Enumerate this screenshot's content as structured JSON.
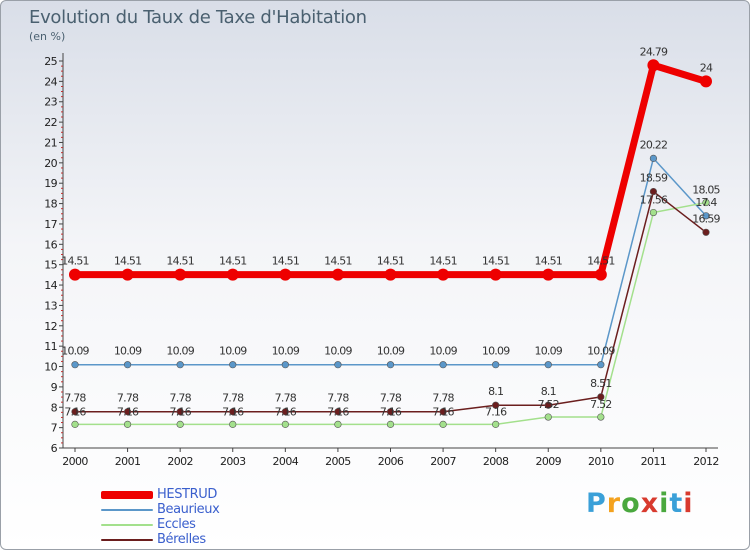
{
  "colors": {
    "hestrud": "#ee0000",
    "beaurieux": "#5b97c9",
    "eccles": "#a3e08c",
    "berelles": "#6b1e1e"
  },
  "logo": {
    "parts": [
      "P",
      "r",
      "o",
      "x",
      "i",
      "t",
      "i"
    ],
    "colors": [
      "#3aa0d8",
      "#f4a21e",
      "#4aa83e",
      "#d83a2e",
      "#4aa83e",
      "#3aa0d8",
      "#d83a2e"
    ]
  },
  "chart_data": {
    "type": "line",
    "title": "Evolution du Taux de Taxe d'Habitation",
    "subtitle": "(en %)",
    "xlabel": "",
    "ylabel": "(en %)",
    "ylim": [
      6,
      25
    ],
    "yticks": [
      "6",
      "7",
      "8",
      "9",
      "10",
      "11",
      "12",
      "13",
      "14",
      "15",
      "16",
      "17",
      "18",
      "19",
      "20",
      "21",
      "22",
      "23",
      "24",
      "25"
    ],
    "categories": [
      "2000",
      "2001",
      "2002",
      "2003",
      "2004",
      "2005",
      "2006",
      "2007",
      "2008",
      "2009",
      "2010",
      "2011",
      "2012"
    ],
    "series": [
      {
        "name": "HESTRUD",
        "color": "#ee0000",
        "values": [
          14.51,
          14.51,
          14.51,
          14.51,
          14.51,
          14.51,
          14.51,
          14.51,
          14.51,
          14.51,
          14.51,
          24.79,
          24
        ],
        "labels": [
          "14.51",
          "14.51",
          "14.51",
          "14.51",
          "14.51",
          "14.51",
          "14.51",
          "14.51",
          "14.51",
          "14.51",
          "14.51",
          "24.79",
          "24"
        ]
      },
      {
        "name": "Beaurieux",
        "color": "#5b97c9",
        "values": [
          10.09,
          10.09,
          10.09,
          10.09,
          10.09,
          10.09,
          10.09,
          10.09,
          10.09,
          10.09,
          10.09,
          20.22,
          17.4
        ],
        "labels": [
          "10.09",
          "10.09",
          "10.09",
          "10.09",
          "10.09",
          "10.09",
          "10.09",
          "10.09",
          "10.09",
          "10.09",
          "10.09",
          "20.22",
          "17.4"
        ]
      },
      {
        "name": "Eccles",
        "color": "#a3e08c",
        "values": [
          7.16,
          7.16,
          7.16,
          7.16,
          7.16,
          7.16,
          7.16,
          7.16,
          7.16,
          7.52,
          7.52,
          17.56,
          18.05
        ],
        "labels": [
          "7.16",
          "7.16",
          "7.16",
          "7.16",
          "7.16",
          "7.16",
          "7.16",
          "7.16",
          "7.16",
          "7.52",
          "7.52",
          "17.56",
          "18.05"
        ]
      },
      {
        "name": "Bérelles",
        "color": "#6b1e1e",
        "values": [
          7.78,
          7.78,
          7.78,
          7.78,
          7.78,
          7.78,
          7.78,
          7.78,
          8.1,
          8.1,
          8.51,
          18.59,
          16.59
        ],
        "labels": [
          "7.78",
          "7.78",
          "7.78",
          "7.78",
          "7.78",
          "7.78",
          "7.78",
          "7.78",
          "8.1",
          "8.1",
          "8.51",
          "18.59",
          "16.59"
        ]
      }
    ]
  }
}
